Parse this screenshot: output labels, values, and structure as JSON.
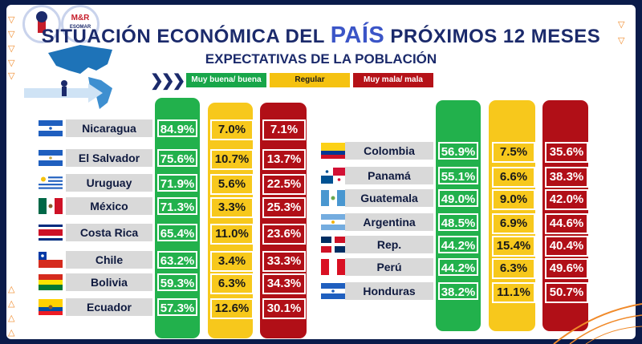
{
  "title": {
    "prefix": "SITUACIÓN ECONÓMICA DEL ",
    "highlight": "PAÍS",
    "suffix": " PRÓXIMOS 12 MESES",
    "subtitle": "EXPECTATIVAS DE LA POBLACIÓN"
  },
  "logo2_text": "M&R",
  "logo2_sub": "ESOMAR",
  "colors": {
    "green": "#22b14c",
    "yellow": "#f7c81c",
    "red": "#b10f17",
    "navy": "#1b2a6b"
  },
  "chart_data": {
    "type": "table",
    "title": "SITUACIÓN ECONÓMICA DEL PAÍS PRÓXIMOS 12 MESES - EXPECTATIVAS DE LA POBLACIÓN",
    "legend": [
      "Muy buena/ buena",
      "Regular",
      "Muy mala/ mala"
    ],
    "left": [
      {
        "country": "Nicaragua",
        "good": "84.9%",
        "regular": "7.0%",
        "bad": "7.1%",
        "flag": "nicaragua"
      },
      {
        "country": "El Salvador",
        "good": "75.6%",
        "regular": "10.7%",
        "bad": "13.7%",
        "flag": "el-salvador"
      },
      {
        "country": "Uruguay",
        "good": "71.9%",
        "regular": "5.6%",
        "bad": "22.5%",
        "flag": "uruguay"
      },
      {
        "country": "México",
        "good": "71.3%",
        "regular": "3.3%",
        "bad": "25.3%",
        "flag": "mexico"
      },
      {
        "country": "Costa Rica",
        "good": "65.4%",
        "regular": "11.0%",
        "bad": "23.6%",
        "flag": "costa-rica"
      },
      {
        "country": "Chile",
        "good": "63.2%",
        "regular": "3.4%",
        "bad": "33.3%",
        "flag": "chile"
      },
      {
        "country": "Bolivia",
        "good": "59.3%",
        "regular": "6.3%",
        "bad": "34.3%",
        "flag": "bolivia"
      },
      {
        "country": "Ecuador",
        "good": "57.3%",
        "regular": "12.6%",
        "bad": "30.1%",
        "flag": "ecuador"
      }
    ],
    "right": [
      {
        "country": "Colombia",
        "good": "56.9%",
        "regular": "7.5%",
        "bad": "35.6%",
        "flag": "colombia"
      },
      {
        "country": "Panamá",
        "good": "55.1%",
        "regular": "6.6%",
        "bad": "38.3%",
        "flag": "panama"
      },
      {
        "country": "Guatemala",
        "good": "49.0%",
        "regular": "9.0%",
        "bad": "42.0%",
        "flag": "guatemala"
      },
      {
        "country": "Argentina",
        "good": "48.5%",
        "regular": "6.9%",
        "bad": "44.6%",
        "flag": "argentina"
      },
      {
        "country": "Rep. Dominicana",
        "good": "44.2%",
        "regular": "15.4%",
        "bad": "40.4%",
        "flag": "dominican-republic"
      },
      {
        "country": "Perú",
        "good": "44.2%",
        "regular": "6.3%",
        "bad": "49.6%",
        "flag": "peru"
      },
      {
        "country": "Honduras",
        "good": "38.2%",
        "regular": "11.1%",
        "bad": "50.7%",
        "flag": "honduras"
      }
    ]
  }
}
